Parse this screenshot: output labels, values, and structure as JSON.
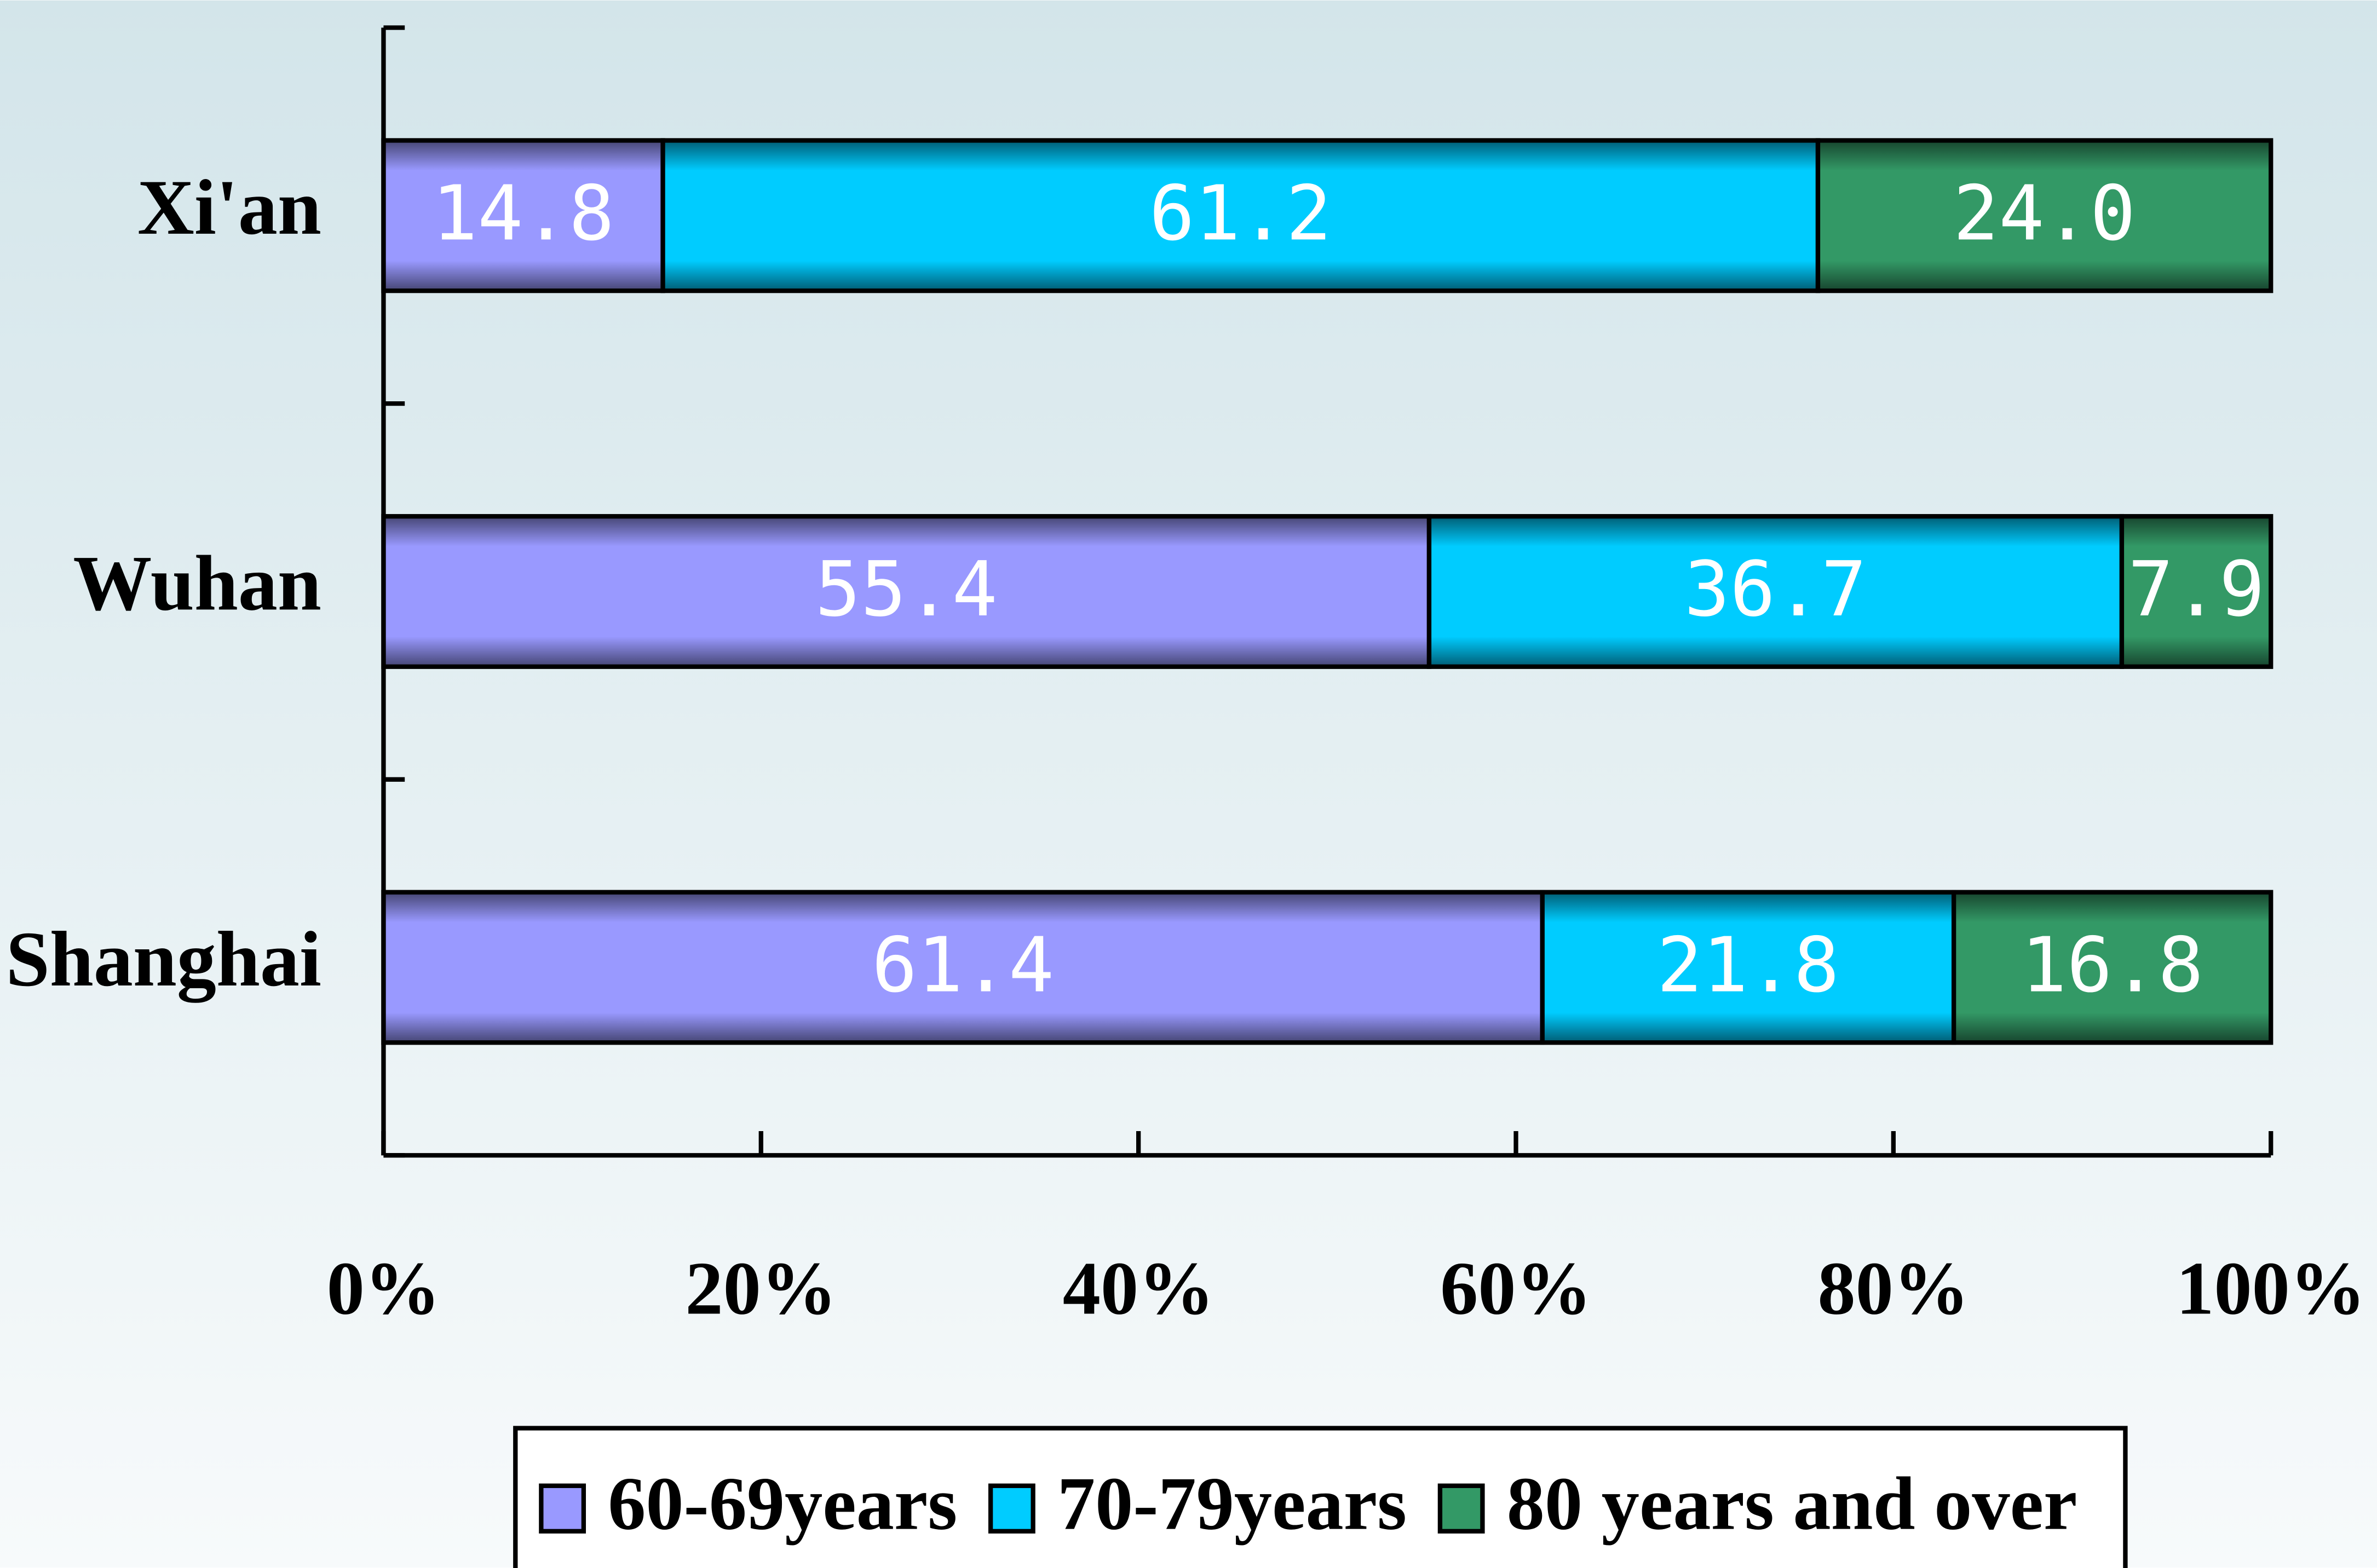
{
  "chart_data": {
    "type": "stacked_barh",
    "categories": [
      "Xi'an",
      "Wuhan",
      "Shanghai"
    ],
    "series": [
      {
        "name": "60-69years",
        "color": "#9999ff",
        "values": [
          14.8,
          55.4,
          61.4
        ],
        "value_labels": [
          "14.8",
          "55.4",
          "61.4"
        ]
      },
      {
        "name": "70-79years",
        "color": "#00ccff",
        "values": [
          61.2,
          36.7,
          21.8
        ],
        "value_labels": [
          "61.2",
          "36.7",
          "21.8"
        ]
      },
      {
        "name": "80 years and over",
        "color": "#339966",
        "values": [
          24.0,
          7.9,
          16.8
        ],
        "value_labels": [
          "24.0",
          "7.9",
          "16.8"
        ]
      }
    ],
    "xlim": [
      0,
      100
    ],
    "xticks": [
      {
        "value": 0,
        "label": "0%"
      },
      {
        "value": 20,
        "label": "20%"
      },
      {
        "value": 40,
        "label": "40%"
      },
      {
        "value": 60,
        "label": "60%"
      },
      {
        "value": 80,
        "label": "80%"
      },
      {
        "value": 100,
        "label": "100%"
      }
    ],
    "legend": "bottom"
  }
}
